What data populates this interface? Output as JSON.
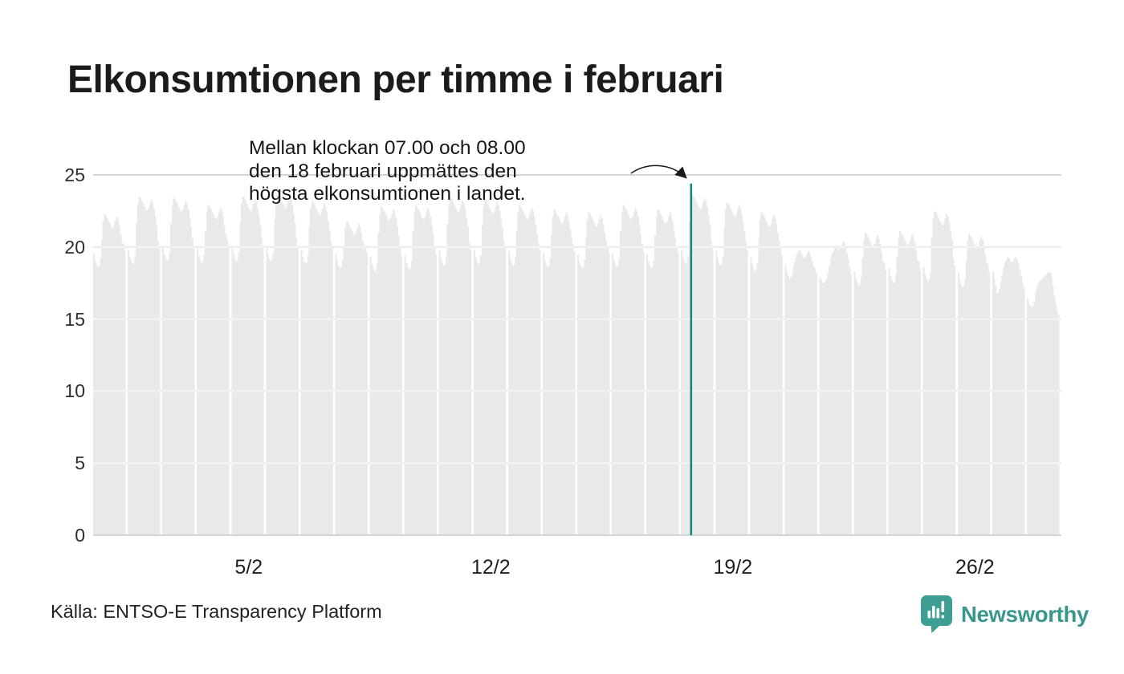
{
  "title": "Elkonsumtionen per timme i februari",
  "annotation": {
    "lines": [
      "Mellan klockan 07.00 och 08.00",
      "den 18 februari uppmättes den",
      "högsta elkonsumtionen i landet."
    ]
  },
  "source": "Källa: ENTSO-E Transparency Platform",
  "brand": {
    "name": "Newsworthy"
  },
  "colors": {
    "bar": "#e9e9eb",
    "grid": "#d4d4d9",
    "grid_over_bar": "rgba(255,255,255,0.55)",
    "highlight": "#118a7e",
    "arrow": "#1a1a1a",
    "brand_teal": "#3d9e93",
    "text": "#1b1b1a"
  },
  "chart_data": {
    "type": "bar",
    "title": "Elkonsumtionen per timme i februari",
    "xlabel": "",
    "ylabel": "",
    "ylim": [
      0,
      25
    ],
    "y_ticks": [
      0,
      5,
      10,
      15,
      20,
      25
    ],
    "x_tick_days": [
      5,
      12,
      19,
      26
    ],
    "x_tick_labels": [
      "5/2",
      "12/2",
      "19/2",
      "26/2"
    ],
    "grid": true,
    "legend": "none",
    "highlight": {
      "day": 18,
      "hour": 7,
      "value": 24.4,
      "note": "highest hourly electricity consumption, 07.00-08.00 on 18 February"
    },
    "days": [
      {
        "date": "1/2",
        "hours": [
          19.6,
          19.1,
          18.8,
          18.6,
          18.7,
          19.2,
          20.5,
          21.8,
          22.3,
          22.2,
          22.0,
          21.8,
          21.6,
          21.4,
          21.3,
          21.5,
          21.8,
          22.1,
          21.9,
          21.5,
          20.9,
          20.3,
          20.2,
          19.7
        ]
      },
      {
        "date": "2/2",
        "hours": [
          19.8,
          19.3,
          19.0,
          18.8,
          18.9,
          19.4,
          21.7,
          23.0,
          23.5,
          23.4,
          23.2,
          23.0,
          22.8,
          22.6,
          22.5,
          22.7,
          23.0,
          23.3,
          23.1,
          22.7,
          22.1,
          21.5,
          20.4,
          19.9
        ]
      },
      {
        "date": "3/2",
        "hours": [
          20.0,
          19.5,
          19.2,
          19.0,
          19.1,
          19.6,
          21.6,
          22.9,
          23.4,
          23.3,
          23.1,
          22.9,
          22.7,
          22.5,
          22.4,
          22.6,
          22.9,
          23.2,
          23.0,
          22.6,
          22.0,
          21.4,
          20.6,
          20.1
        ]
      },
      {
        "date": "4/2",
        "hours": [
          19.9,
          19.4,
          19.1,
          18.9,
          19.0,
          19.5,
          21.1,
          22.4,
          22.9,
          22.8,
          22.6,
          22.4,
          22.2,
          22.0,
          21.9,
          22.1,
          22.4,
          22.7,
          22.5,
          22.1,
          21.5,
          20.9,
          20.5,
          20.0
        ]
      },
      {
        "date": "5/2",
        "hours": [
          20.0,
          19.5,
          19.2,
          19.0,
          19.1,
          19.6,
          21.7,
          23.0,
          23.5,
          23.4,
          23.2,
          23.0,
          22.8,
          22.6,
          22.5,
          22.7,
          23.0,
          23.3,
          23.1,
          22.7,
          22.1,
          21.5,
          20.6,
          20.1
        ]
      },
      {
        "date": "6/2",
        "hours": [
          20.0,
          19.5,
          19.2,
          19.0,
          19.1,
          19.6,
          21.9,
          23.2,
          23.7,
          23.6,
          23.4,
          23.2,
          23.0,
          22.8,
          22.7,
          22.9,
          23.2,
          23.5,
          23.3,
          22.9,
          22.3,
          21.7,
          20.6,
          20.1
        ]
      },
      {
        "date": "7/2",
        "hours": [
          19.8,
          19.3,
          19.0,
          18.8,
          18.9,
          19.4,
          21.4,
          22.7,
          23.2,
          23.1,
          22.9,
          22.7,
          22.5,
          22.3,
          22.2,
          22.4,
          22.7,
          23.0,
          22.8,
          22.4,
          21.8,
          21.2,
          20.4,
          19.9
        ]
      },
      {
        "date": "8/2",
        "hours": [
          19.5,
          19.0,
          18.7,
          18.5,
          18.6,
          19.1,
          20.0,
          21.3,
          21.8,
          21.7,
          21.5,
          21.3,
          21.1,
          20.9,
          20.8,
          21.0,
          21.3,
          21.6,
          21.4,
          21.0,
          20.4,
          19.8,
          20.1,
          19.6
        ]
      },
      {
        "date": "9/2",
        "hours": [
          19.3,
          18.8,
          18.5,
          18.3,
          18.4,
          18.9,
          21.0,
          22.3,
          22.8,
          22.7,
          22.5,
          22.3,
          22.1,
          21.9,
          21.8,
          22.0,
          22.3,
          22.6,
          22.4,
          22.0,
          21.4,
          20.8,
          19.9,
          19.4
        ]
      },
      {
        "date": "10/2",
        "hours": [
          19.4,
          18.9,
          18.6,
          18.4,
          18.5,
          19.0,
          21.1,
          22.4,
          22.9,
          22.8,
          22.6,
          22.4,
          22.2,
          22.0,
          21.9,
          22.1,
          22.4,
          22.7,
          22.5,
          22.1,
          21.5,
          20.9,
          20.0,
          19.5
        ]
      },
      {
        "date": "11/2",
        "hours": [
          19.7,
          19.2,
          18.9,
          18.7,
          18.8,
          19.3,
          21.6,
          22.9,
          23.4,
          23.3,
          23.1,
          22.9,
          22.7,
          22.5,
          22.4,
          22.6,
          22.9,
          23.2,
          23.0,
          22.6,
          22.0,
          21.4,
          20.3,
          19.8
        ]
      },
      {
        "date": "12/2",
        "hours": [
          19.8,
          19.3,
          19.0,
          18.8,
          18.9,
          19.4,
          21.5,
          22.8,
          23.3,
          23.2,
          23.0,
          22.8,
          22.6,
          22.4,
          22.3,
          22.5,
          22.8,
          23.1,
          22.9,
          22.5,
          21.9,
          21.3,
          20.4,
          19.9
        ]
      },
      {
        "date": "13/2",
        "hours": [
          19.7,
          19.2,
          18.9,
          18.7,
          18.8,
          19.3,
          21.1,
          22.4,
          22.9,
          22.8,
          22.6,
          22.4,
          22.2,
          22.0,
          21.9,
          22.1,
          22.4,
          22.7,
          22.5,
          22.1,
          21.5,
          20.9,
          20.3,
          19.8
        ]
      },
      {
        "date": "14/2",
        "hours": [
          19.6,
          19.1,
          18.8,
          18.6,
          18.7,
          19.2,
          20.8,
          22.1,
          22.6,
          22.5,
          22.3,
          22.1,
          21.9,
          21.7,
          21.6,
          21.8,
          22.1,
          22.4,
          22.2,
          21.8,
          21.2,
          20.6,
          20.2,
          19.7
        ]
      },
      {
        "date": "15/2",
        "hours": [
          19.5,
          19.0,
          18.7,
          18.5,
          18.6,
          19.1,
          20.6,
          21.9,
          22.4,
          22.3,
          22.1,
          21.9,
          21.7,
          21.5,
          21.4,
          21.6,
          21.9,
          22.2,
          22.0,
          21.6,
          21.0,
          20.4,
          20.1,
          19.6
        ]
      },
      {
        "date": "16/2",
        "hours": [
          19.6,
          19.1,
          18.8,
          18.6,
          18.7,
          19.2,
          21.1,
          22.4,
          22.9,
          22.8,
          22.6,
          22.4,
          22.2,
          22.0,
          21.9,
          22.1,
          22.4,
          22.7,
          22.5,
          22.1,
          21.5,
          20.9,
          20.2,
          19.7
        ]
      },
      {
        "date": "17/2",
        "hours": [
          19.5,
          19.0,
          18.7,
          18.5,
          18.6,
          19.1,
          20.8,
          22.1,
          22.6,
          22.5,
          22.3,
          22.1,
          21.9,
          21.7,
          21.6,
          21.8,
          22.1,
          22.4,
          22.2,
          21.8,
          21.2,
          20.6,
          20.1,
          19.6
        ]
      },
      {
        "date": "18/2",
        "hours": [
          19.8,
          19.3,
          19.0,
          18.8,
          18.9,
          19.4,
          21.8,
          24.4,
          23.6,
          23.5,
          23.3,
          23.1,
          22.9,
          22.7,
          22.6,
          22.8,
          23.1,
          23.4,
          23.2,
          22.8,
          22.2,
          21.6,
          20.4,
          19.9
        ]
      },
      {
        "date": "19/2",
        "hours": [
          19.7,
          19.2,
          18.9,
          18.7,
          18.8,
          19.3,
          21.3,
          22.6,
          23.1,
          23.0,
          22.8,
          22.6,
          22.4,
          22.2,
          22.1,
          22.3,
          22.6,
          22.9,
          22.7,
          22.3,
          21.7,
          21.1,
          20.3,
          19.8
        ]
      },
      {
        "date": "20/2",
        "hours": [
          19.3,
          18.8,
          18.5,
          18.3,
          18.4,
          18.9,
          20.6,
          21.9,
          22.4,
          22.3,
          22.1,
          21.9,
          21.7,
          21.5,
          21.4,
          21.6,
          21.9,
          22.2,
          22.0,
          21.6,
          21.0,
          20.4,
          19.9,
          19.4
        ]
      },
      {
        "date": "21/2",
        "hours": [
          18.8,
          18.3,
          18.0,
          17.8,
          17.9,
          18.1,
          18.6,
          19.0,
          19.4,
          19.6,
          19.8,
          19.7,
          19.5,
          19.3,
          19.2,
          19.3,
          19.5,
          19.7,
          19.6,
          19.3,
          19.0,
          18.7,
          18.5,
          18.2
        ]
      },
      {
        "date": "22/2",
        "hours": [
          17.9,
          17.7,
          17.5,
          17.5,
          17.6,
          17.8,
          18.2,
          18.7,
          19.2,
          19.5,
          19.7,
          19.9,
          20.0,
          19.9,
          19.8,
          19.9,
          20.1,
          20.4,
          20.3,
          20.0,
          19.6,
          19.2,
          18.6,
          18.1
        ]
      },
      {
        "date": "23/2",
        "hours": [
          18.3,
          17.8,
          17.5,
          17.3,
          17.4,
          17.9,
          19.2,
          20.5,
          21.0,
          20.9,
          20.7,
          20.5,
          20.3,
          20.1,
          20.0,
          20.2,
          20.5,
          20.8,
          20.6,
          20.2,
          19.6,
          19.0,
          18.9,
          18.4
        ]
      },
      {
        "date": "24/2",
        "hours": [
          18.5,
          18.0,
          17.7,
          17.5,
          17.6,
          18.1,
          19.3,
          20.6,
          21.1,
          21.0,
          20.8,
          20.6,
          20.4,
          20.2,
          20.1,
          20.3,
          20.6,
          20.9,
          20.7,
          20.3,
          19.7,
          19.1,
          19.0,
          18.5
        ]
      },
      {
        "date": "25/2",
        "hours": [
          18.6,
          18.1,
          17.8,
          17.6,
          17.7,
          18.2,
          20.7,
          22.0,
          22.5,
          22.4,
          22.2,
          22.0,
          21.8,
          21.6,
          21.5,
          21.7,
          22.0,
          22.3,
          22.1,
          21.7,
          21.1,
          20.5,
          19.2,
          18.7
        ]
      },
      {
        "date": "26/2",
        "hours": [
          18.2,
          17.7,
          17.4,
          17.2,
          17.3,
          17.8,
          19.1,
          20.4,
          20.9,
          20.8,
          20.6,
          20.4,
          20.2,
          20.0,
          19.9,
          20.1,
          20.4,
          20.7,
          20.5,
          20.1,
          19.5,
          18.9,
          18.8,
          18.3
        ]
      },
      {
        "date": "27/2",
        "hours": [
          18.3,
          17.8,
          17.3,
          16.8,
          16.9,
          17.1,
          17.6,
          18.1,
          18.6,
          18.9,
          19.1,
          19.3,
          19.2,
          19.0,
          18.9,
          19.0,
          19.2,
          19.3,
          19.1,
          18.8,
          18.4,
          18.0,
          17.6,
          17.2
        ]
      },
      {
        "date": "28/2",
        "hours": [
          16.4,
          16.1,
          15.9,
          15.8,
          15.9,
          16.2,
          16.8,
          17.2,
          17.5,
          17.6,
          17.7,
          17.8,
          17.9,
          18.0,
          18.1,
          18.2,
          18.3,
          18.2,
          17.9,
          17.3,
          16.6,
          16.0,
          15.6,
          15.3
        ]
      }
    ]
  }
}
